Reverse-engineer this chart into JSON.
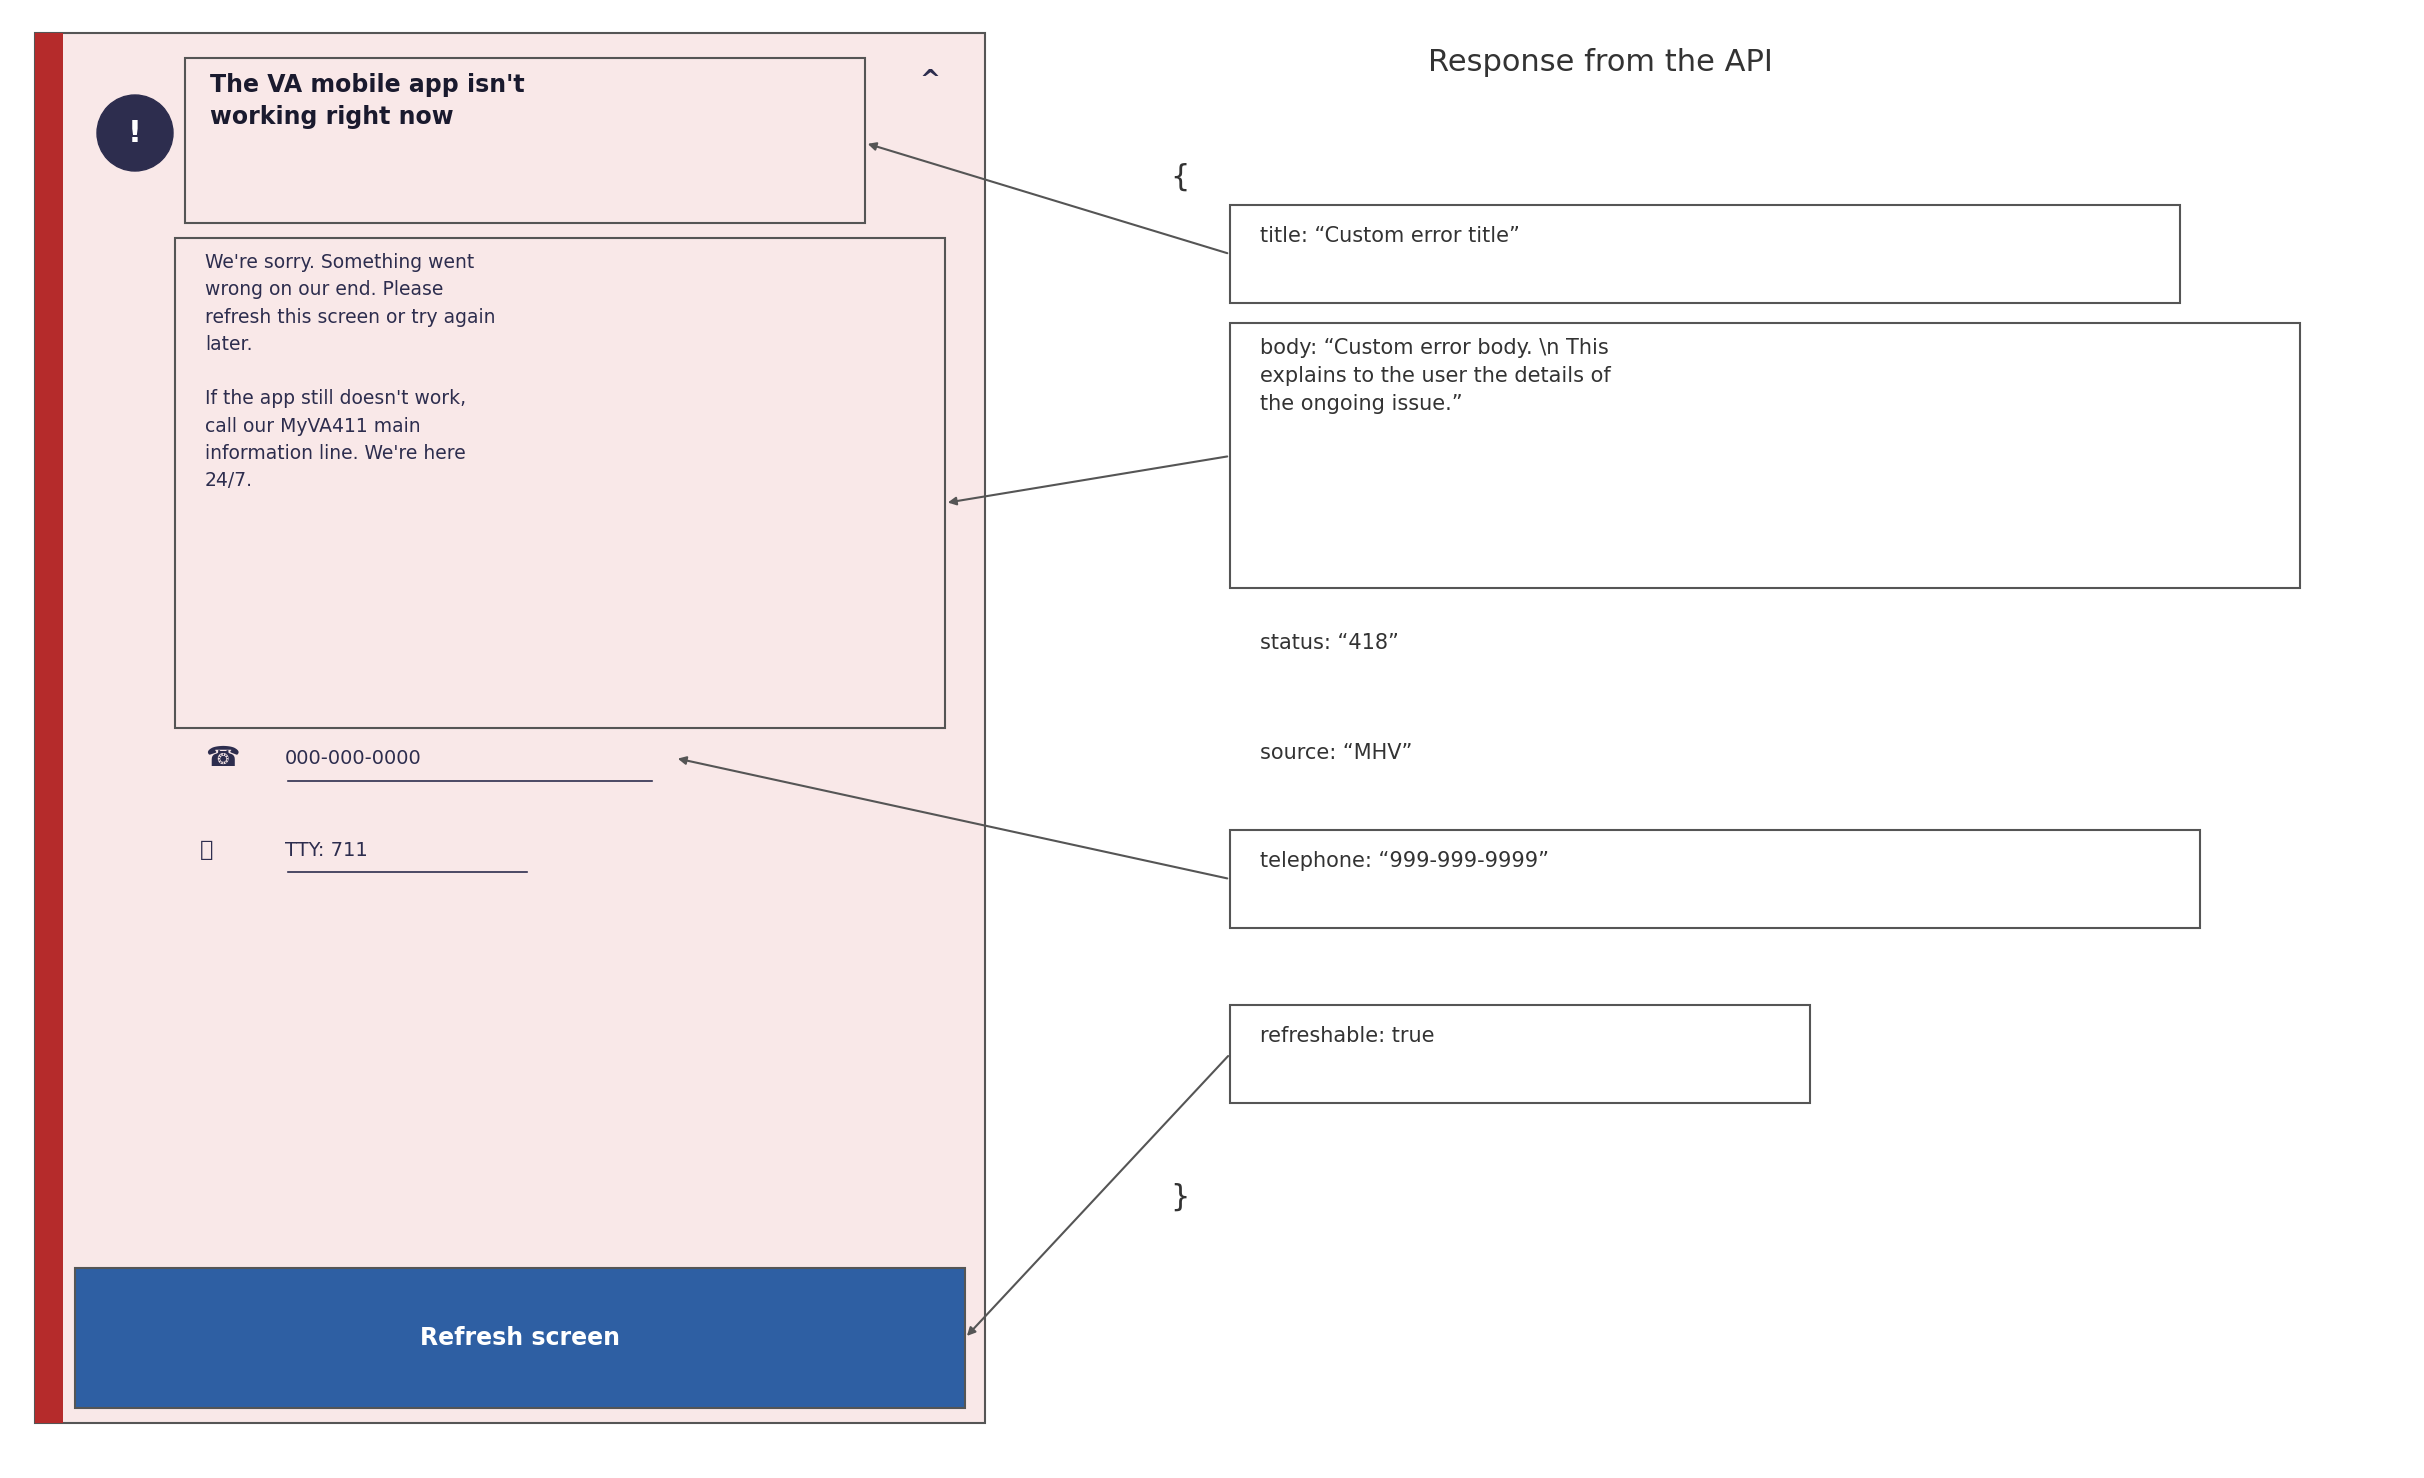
{
  "title": "Response from the API",
  "bg_color": "#ffffff",
  "panel_bg": "#f9e8e8",
  "panel_left_border": "#b52b2b",
  "panel_border": "#555555",
  "title_color": "#333333",
  "header_text": "The VA mobile app isn't\nworking right now",
  "header_text_color": "#1a1a2e",
  "body_text1": "We're sorry. Something went\nwrong on our end. Please\nrefresh this screen or try again\nlater.\n\nIf the app still doesn't work,\ncall our MyVA411 main\ninformation line. We're here\n24/7.",
  "body_text_color": "#2d2d4e",
  "phone_text": "000-000-0000",
  "tty_text": "TTY: 711",
  "button_text": "Refresh screen",
  "button_color": "#2e5fa3",
  "button_text_color": "#ffffff",
  "caret_text": "^",
  "api_brace_open": "{",
  "api_brace_close": "}",
  "api_title_label": "title: “Custom error title”",
  "api_body_label": "body: “Custom error body. \\n This\nexplains to the user the details of\nthe ongoing issue.”",
  "api_status_label": "status: “418”",
  "api_source_label": "source: “MHV”",
  "api_telephone_label": "telephone: “999-999-9999”",
  "api_refreshable_label": "refreshable: true",
  "arrow_color": "#555555",
  "box_border_color": "#555555"
}
